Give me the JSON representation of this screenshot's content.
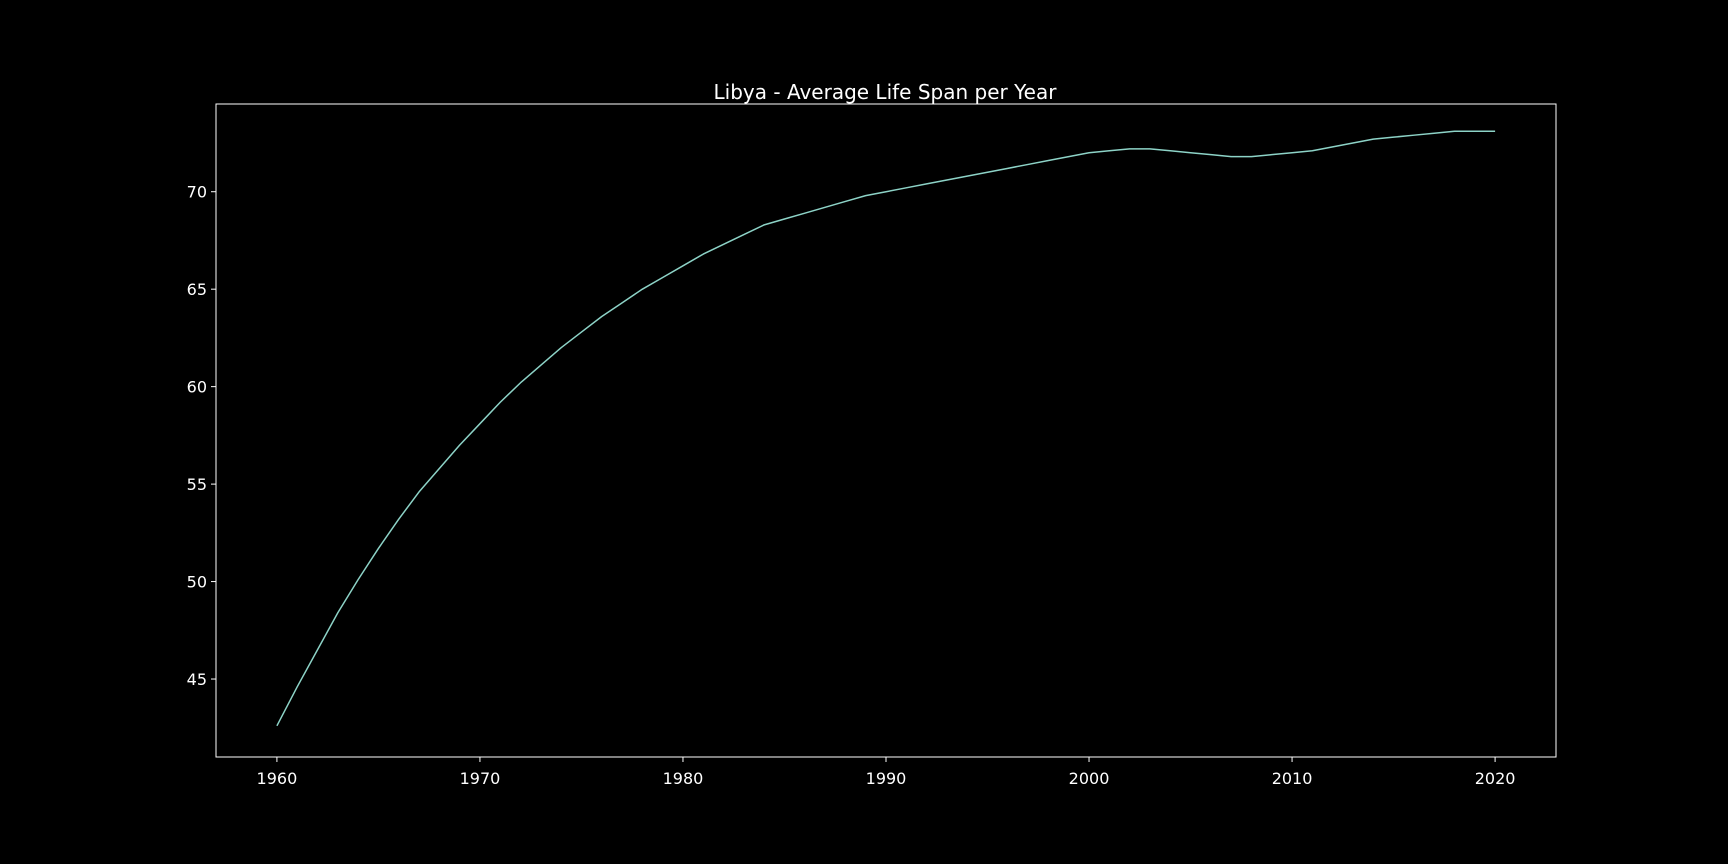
{
  "chart_data": {
    "type": "line",
    "title": "Libya - Average Life Span per Year",
    "xlabel": "",
    "ylabel": "",
    "xlim": [
      1957,
      2023
    ],
    "ylim": [
      41,
      74.5
    ],
    "x_ticks": [
      1960,
      1970,
      1980,
      1990,
      2000,
      2010,
      2020
    ],
    "x_tick_labels": [
      "1960",
      "1970",
      "1980",
      "1990",
      "2000",
      "2010",
      "2020"
    ],
    "y_ticks": [
      45,
      50,
      55,
      60,
      65,
      70
    ],
    "y_tick_labels": [
      "45",
      "50",
      "55",
      "60",
      "65",
      "70"
    ],
    "grid": false,
    "legend": "none",
    "colors": {
      "background": "#000000",
      "axes": "#ffffff",
      "line": "#8dd3c7",
      "text": "#ffffff"
    },
    "series": [
      {
        "x": [
          1960,
          1961,
          1962,
          1963,
          1964,
          1965,
          1966,
          1967,
          1968,
          1969,
          1970,
          1971,
          1972,
          1973,
          1974,
          1975,
          1976,
          1977,
          1978,
          1979,
          1980,
          1981,
          1982,
          1983,
          1984,
          1985,
          1986,
          1987,
          1988,
          1989,
          1990,
          1991,
          1992,
          1993,
          1994,
          1995,
          1996,
          1997,
          1998,
          1999,
          2000,
          2001,
          2002,
          2003,
          2004,
          2005,
          2006,
          2007,
          2008,
          2009,
          2010,
          2011,
          2012,
          2013,
          2014,
          2015,
          2016,
          2017,
          2018,
          2019,
          2020
        ],
        "values": [
          42.6,
          44.6,
          46.5,
          48.4,
          50.1,
          51.7,
          53.2,
          54.6,
          55.8,
          57.0,
          58.1,
          59.2,
          60.2,
          61.1,
          62.0,
          62.8,
          63.6,
          64.3,
          65.0,
          65.6,
          66.2,
          66.8,
          67.3,
          67.8,
          68.3,
          68.6,
          68.9,
          69.2,
          69.5,
          69.8,
          70.0,
          70.2,
          70.4,
          70.6,
          70.8,
          71.0,
          71.2,
          71.4,
          71.6,
          71.8,
          72.0,
          72.1,
          72.2,
          72.2,
          72.1,
          72.0,
          71.9,
          71.8,
          71.8,
          71.9,
          72.0,
          72.1,
          72.3,
          72.5,
          72.7,
          72.8,
          72.9,
          73.0,
          73.1,
          73.1,
          73.1
        ]
      }
    ]
  }
}
